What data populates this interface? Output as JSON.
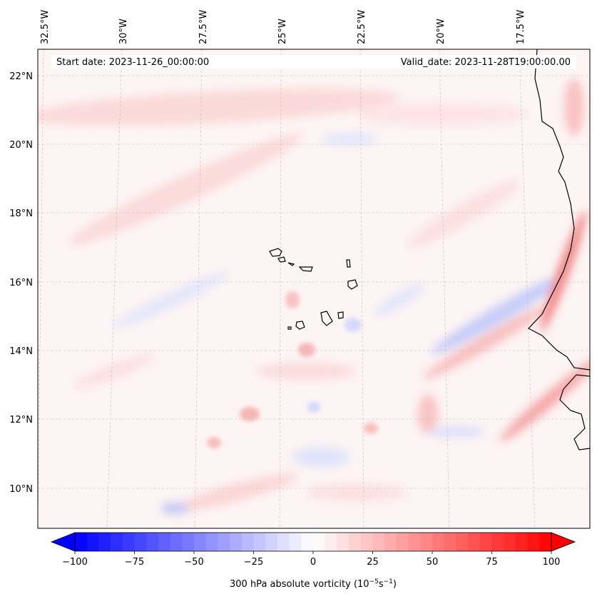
{
  "header": {
    "start_date": "Start date: 2023-11-26_00:00:00",
    "valid_date": "Valid_date: 2023-11-28T19:00:00.00"
  },
  "map": {
    "lon_labels": [
      "32.5°W",
      "30°W",
      "27.5°W",
      "25°W",
      "22.5°W",
      "20°W",
      "17.5°W"
    ],
    "lat_labels": [
      "22°N",
      "20°N",
      "18°N",
      "16°N",
      "14°N",
      "12°N",
      "10°N"
    ],
    "field": "300 hPa absolute vorticity"
  },
  "colorbar": {
    "ticks": [
      "−100",
      "−75",
      "−50",
      "−25",
      "0",
      "25",
      "50",
      "75",
      "100"
    ],
    "label": "300 hPa absolute vorticity (10",
    "label_exp1": "−5",
    "label_mid": "s",
    "label_exp2": "−1",
    "label_end": ")",
    "min": -100,
    "max": 100
  },
  "colors": {
    "negative": "#0000ff",
    "zero": "#ffffff",
    "positive": "#ff0000"
  }
}
